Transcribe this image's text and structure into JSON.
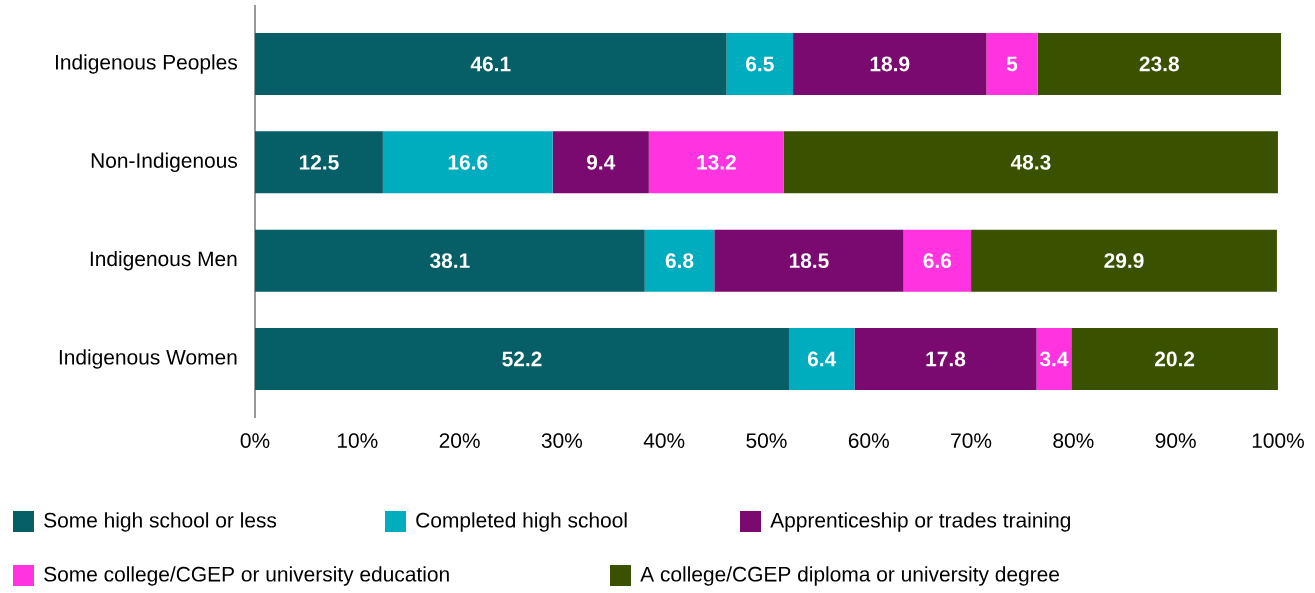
{
  "chart_data": {
    "type": "bar",
    "orientation": "horizontal",
    "stacked": true,
    "data_labels": true,
    "legend": "bottom",
    "categories": [
      "Indigenous Peoples",
      "Non-Indigenous",
      "Indigenous Men",
      "Indigenous Women"
    ],
    "xlim": [
      0,
      100.3
    ],
    "xticks": [
      {
        "value": 0,
        "label": "0%"
      },
      {
        "value": 10,
        "label": "10%"
      },
      {
        "value": 20,
        "label": "20%"
      },
      {
        "value": 30,
        "label": "30%"
      },
      {
        "value": 40,
        "label": "40%"
      },
      {
        "value": 50,
        "label": "50%"
      },
      {
        "value": 60,
        "label": "60%"
      },
      {
        "value": 70,
        "label": "70%"
      },
      {
        "value": 80,
        "label": "80%"
      },
      {
        "value": 90,
        "label": "90%"
      },
      {
        "value": 100,
        "label": "100%"
      }
    ],
    "series": [
      {
        "name": "Some high school or less",
        "color": "#065e66",
        "values": [
          46.1,
          12.5,
          38.1,
          52.2
        ]
      },
      {
        "name": "Completed high school",
        "color": "#00adbf",
        "values": [
          6.5,
          16.6,
          6.8,
          6.4
        ]
      },
      {
        "name": "Apprenticeship or trades training",
        "color": "#7a0a6f",
        "values": [
          18.9,
          9.4,
          18.5,
          17.8
        ]
      },
      {
        "name": "Some college/CGEP or university education",
        "color": "#ff33e0",
        "values": [
          5,
          13.2,
          6.6,
          3.4
        ]
      },
      {
        "name": "A college/CGEP diploma or university degree",
        "color": "#3a5200",
        "values": [
          23.8,
          48.3,
          29.9,
          20.2
        ]
      }
    ]
  }
}
